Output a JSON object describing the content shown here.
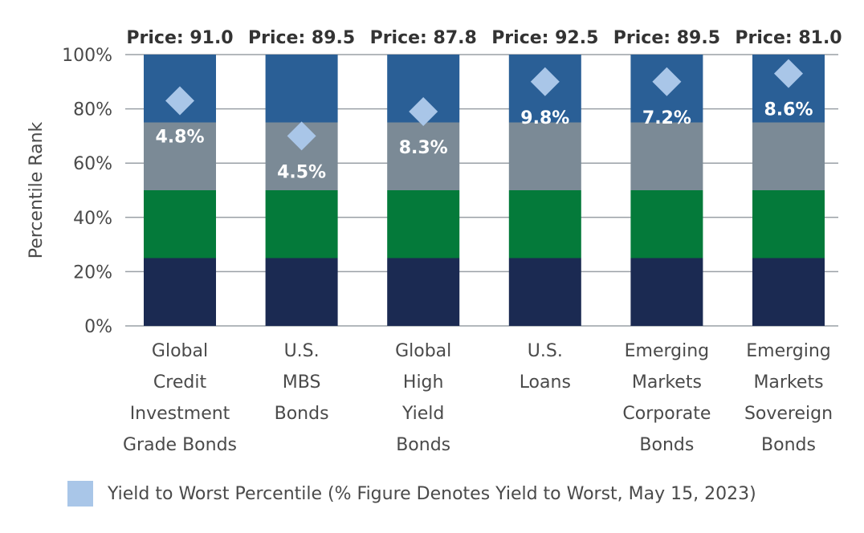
{
  "chart_data": {
    "type": "bar",
    "stacked": true,
    "ylabel": "Percentile Rank",
    "ylim": [
      0,
      100
    ],
    "yticks": [
      "0%",
      "20%",
      "40%",
      "60%",
      "80%",
      "100%"
    ],
    "grid": true,
    "categories": [
      [
        "Global",
        "Credit",
        "Investment",
        "Grade Bonds"
      ],
      [
        "U.S.",
        "MBS",
        "Bonds"
      ],
      [
        "Global",
        "High",
        "Yield",
        "Bonds"
      ],
      [
        "U.S.",
        "Loans"
      ],
      [
        "Emerging",
        "Markets",
        "Corporate",
        "Bonds"
      ],
      [
        "Emerging",
        "Markets",
        "Sovereign",
        "Bonds"
      ]
    ],
    "price_labels": [
      "Price: 91.0",
      "Price: 89.5",
      "Price: 87.8",
      "Price: 92.5",
      "Price: 89.5",
      "Price: 81.0"
    ],
    "bands": [
      {
        "from": 0,
        "to": 25,
        "color": "#1b2a52"
      },
      {
        "from": 25,
        "to": 50,
        "color": "#047a3a"
      },
      {
        "from": 50,
        "to": 75,
        "color": "#7b8a96"
      },
      {
        "from": 75,
        "to": 100,
        "color": "#2a5f96"
      }
    ],
    "markers": {
      "color": "#a9c6e8",
      "values": [
        83,
        70,
        79,
        90,
        90,
        93
      ],
      "labels": [
        "4.8%",
        "4.5%",
        "8.3%",
        "9.8%",
        "7.2%",
        "8.6%"
      ]
    },
    "legend": {
      "position": "bottom-left",
      "label": "Yield to Worst Percentile (% Figure Denotes Yield to Worst, May 15, 2023)",
      "color": "#a9c6e8"
    }
  }
}
